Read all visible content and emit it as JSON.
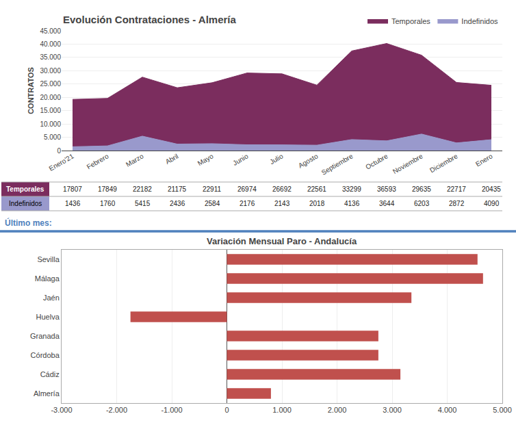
{
  "chart_data": [
    {
      "type": "area",
      "title": "Evolución Contrataciones - Almería",
      "ylabel": "CONTRATOS",
      "categories": [
        "Enero'21",
        "Febrero",
        "Marzo",
        "Abril",
        "Mayo",
        "Junio",
        "Julio",
        "Agosto",
        "Septiembre",
        "Octubre",
        "Noviembre",
        "Diciembre",
        "Enero"
      ],
      "series": [
        {
          "name": "Indefinidos",
          "color": "#9999CC",
          "values": [
            1436,
            1760,
            5415,
            2436,
            2584,
            2176,
            2143,
            2018,
            4136,
            3644,
            6203,
            2872,
            4090
          ]
        },
        {
          "name": "Temporales",
          "color": "#7B2D5E",
          "values": [
            17807,
            17849,
            22182,
            21175,
            22911,
            26974,
            26692,
            22561,
            33299,
            36593,
            29635,
            22717,
            20435
          ]
        }
      ],
      "stacked": true,
      "ylim": [
        0,
        45000
      ],
      "yticks": [
        0,
        {
          "value": 5000,
          "label": "5.000"
        },
        {
          "value": 10000,
          "label": "10.000"
        },
        {
          "value": 15000,
          "label": "15.000"
        },
        {
          "value": 20000,
          "label": "20.000"
        },
        {
          "value": 25000,
          "label": "25.000"
        },
        {
          "value": 30000,
          "label": "30.000"
        },
        {
          "value": 35000,
          "label": "35.000"
        },
        {
          "value": 40000,
          "label": "40.000"
        },
        {
          "value": 45000,
          "label": "45.000"
        }
      ],
      "grid": true,
      "legend": "upper right",
      "data_labels": true
    },
    {
      "type": "bar",
      "orientation": "horizontal",
      "title": "Variación Mensual Paro - Andalucía",
      "annotations": [
        {
          "text": "Último mes:",
          "color": "#4F81BD"
        }
      ],
      "categories": [
        "Sevilla",
        "Málaga",
        "Jaén",
        "Huelva",
        "Granada",
        "Córdoba",
        "Cádiz",
        "Almería"
      ],
      "values": [
        4550,
        4650,
        3350,
        -1750,
        2750,
        2750,
        3150,
        800
      ],
      "color": "#C0504D",
      "xlim": [
        -3000,
        5000
      ],
      "xticks": [
        {
          "value": -3000,
          "label": "-3.000"
        },
        {
          "value": -2000,
          "label": "-2.000"
        },
        {
          "value": -1000,
          "label": "-1.000"
        },
        0,
        {
          "value": 1000,
          "label": "1.000"
        },
        {
          "value": 2000,
          "label": "2.000"
        },
        {
          "value": 3000,
          "label": "3.000"
        },
        {
          "value": 4000,
          "label": "4.000"
        },
        {
          "value": 5000,
          "label": "5.000"
        }
      ],
      "grid": true
    }
  ]
}
